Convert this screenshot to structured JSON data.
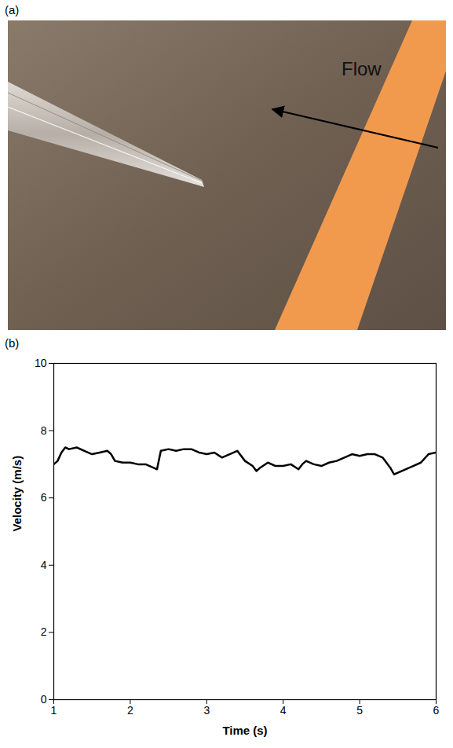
{
  "panel_a": {
    "label": "(a)",
    "annotation": "Flow"
  },
  "panel_b": {
    "label": "(b)"
  },
  "chart_data": {
    "type": "line",
    "xlabel": "Time (s)",
    "ylabel": "Velocity (m/s)",
    "x": [
      1.0,
      1.05,
      1.1,
      1.15,
      1.2,
      1.3,
      1.4,
      1.5,
      1.6,
      1.7,
      1.75,
      1.8,
      1.9,
      2.0,
      2.1,
      2.2,
      2.3,
      2.35,
      2.4,
      2.5,
      2.6,
      2.7,
      2.8,
      2.9,
      3.0,
      3.1,
      3.2,
      3.3,
      3.4,
      3.5,
      3.6,
      3.65,
      3.7,
      3.8,
      3.9,
      4.0,
      4.1,
      4.2,
      4.25,
      4.3,
      4.4,
      4.5,
      4.6,
      4.7,
      4.8,
      4.9,
      5.0,
      5.1,
      5.2,
      5.3,
      5.4,
      5.45,
      5.5,
      5.6,
      5.7,
      5.8,
      5.9,
      6.0
    ],
    "values": [
      7.0,
      7.1,
      7.35,
      7.5,
      7.45,
      7.5,
      7.4,
      7.3,
      7.35,
      7.4,
      7.3,
      7.1,
      7.05,
      7.05,
      7.0,
      7.0,
      6.9,
      6.85,
      7.4,
      7.45,
      7.4,
      7.45,
      7.45,
      7.35,
      7.3,
      7.35,
      7.2,
      7.3,
      7.4,
      7.1,
      6.95,
      6.8,
      6.9,
      7.05,
      6.95,
      6.95,
      7.0,
      6.85,
      7.0,
      7.1,
      7.0,
      6.95,
      7.05,
      7.1,
      7.2,
      7.3,
      7.25,
      7.3,
      7.3,
      7.2,
      6.9,
      6.7,
      6.75,
      6.85,
      6.95,
      7.05,
      7.3,
      7.35
    ],
    "color": "#000000",
    "xlim": [
      1,
      6
    ],
    "xticks": [
      1,
      2,
      3,
      4,
      5,
      6
    ],
    "ylim": [
      0,
      10
    ],
    "yticks": [
      0,
      2,
      4,
      6,
      8,
      10
    ],
    "grid": false
  }
}
